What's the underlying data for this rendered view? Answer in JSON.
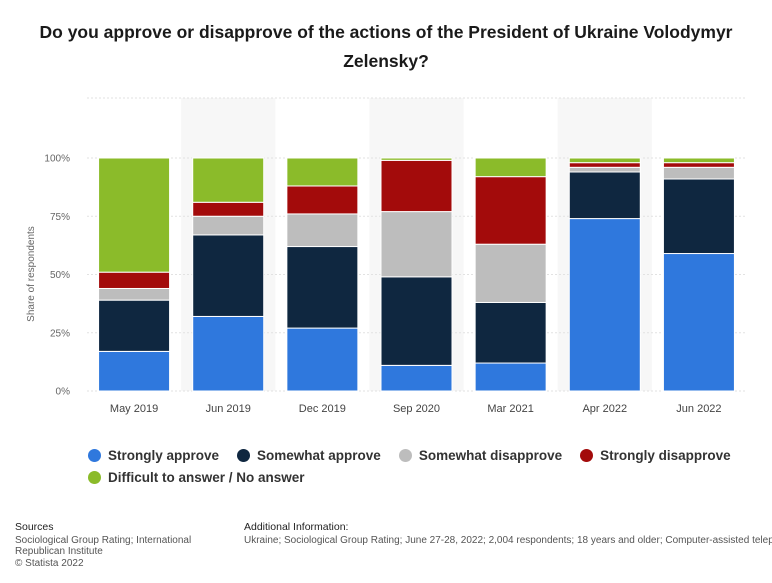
{
  "chart_data": {
    "type": "bar",
    "stacked": true,
    "title": "Do you approve or disapprove of the actions of the President of Ukraine Volodymyr Zelensky?",
    "ylabel": "Share of respondents",
    "xlabel": "",
    "ylim": [
      0,
      100
    ],
    "yticks": [
      "0%",
      "25%",
      "50%",
      "75%",
      "100%"
    ],
    "grid": true,
    "legend_position": "bottom",
    "categories": [
      "May 2019",
      "Jun 2019",
      "Dec 2019",
      "Sep 2020",
      "Mar 2021",
      "Apr 2022",
      "Jun 2022"
    ],
    "series": [
      {
        "name": "Strongly approve",
        "color": "#2f78dd",
        "values": [
          17,
          32,
          27,
          11,
          12,
          74,
          59
        ]
      },
      {
        "name": "Somewhat approve",
        "color": "#0f2740",
        "values": [
          22,
          35,
          35,
          38,
          26,
          20,
          32
        ]
      },
      {
        "name": "Somewhat disapprove",
        "color": "#bdbdbd",
        "values": [
          5,
          8,
          14,
          28,
          25,
          2,
          5
        ]
      },
      {
        "name": "Strongly disapprove",
        "color": "#a30b0b",
        "values": [
          7,
          6,
          12,
          22,
          29,
          2,
          2
        ]
      },
      {
        "name": "Difficult to answer / No answer",
        "color": "#8bbb2a",
        "values": [
          49,
          19,
          12,
          1,
          8,
          2,
          2
        ]
      }
    ]
  },
  "footer": {
    "sources_heading": "Sources",
    "sources_text": "Sociological Group Rating; International Republican Institute",
    "copyright": "© Statista 2022",
    "additional_heading": "Additional Information:",
    "additional_text": "Ukraine; Sociological Group Rating; June 27-28, 2022; 2,004 respondents; 18 years and older; Computer-assisted telephone interviews"
  }
}
